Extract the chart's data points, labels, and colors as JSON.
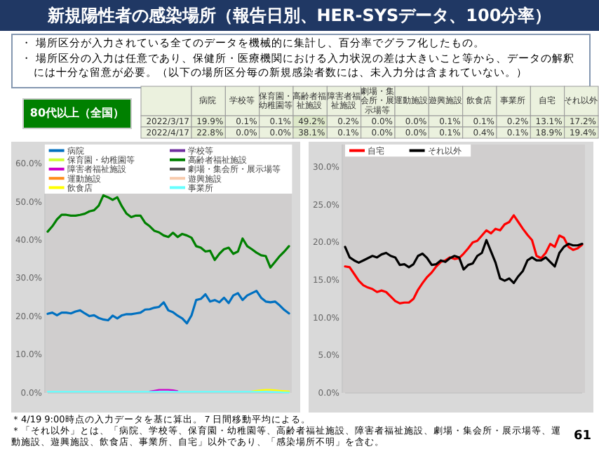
{
  "chart_data": [
    {
      "type": "other",
      "title": "新規陽性者の感染場所（報告日別、HER-SYSデータ、100分率）",
      "annotations": [
        "・ 場所区分が入力されている全てのデータを機械的に集計し、百分率でグラフ化したもの。",
        "・ 場所区分の入力は任意であり、保健所・医療機関における入力状況の差は大きいこと等から、データの解釈には十分な留意が必要。（以下の場所区分毎の新規感染者数には、未入力分は含まれていない。）",
        "80代以上（全国）",
        "＊4/19 9:00時点の入力データを基に算出。７日間移動平均による。",
        "＊「それ以外」とは、「病院、学校等、保育園・幼稚園等、高齢者福祉施設、障害者福祉施設、劇場・集会所・展示場等、運動施設、遊興施設、飲食店、事業所、自宅」以外であり、「感染場所不明」を含む。",
        "61"
      ]
    },
    {
      "type": "heatmap",
      "color": "#ebf1de",
      "categories": [
        "病院",
        "学校等",
        "保育園・幼稚園等",
        "高齢者福祉施設",
        "障害者福祉施設",
        "劇場・集会所・展示場等",
        "運動施設",
        "遊興施設",
        "飲食店",
        "事業所",
        "自宅",
        "それ以外"
      ],
      "y_categories": [
        "2022/3/17",
        "2022/4/17"
      ],
      "cells": [
        [
          19.9,
          0.1,
          0.1,
          49.2,
          0.2,
          0.0,
          0.0,
          0.1,
          0.1,
          0.2,
          13.1,
          17.2
        ],
        [
          22.8,
          0.0,
          0.0,
          38.1,
          0.1,
          0.0,
          0.0,
          0.1,
          0.4,
          0.1,
          18.9,
          19.4
        ]
      ],
      "cell_labels": [
        [
          "19.9%",
          "0.1%",
          "0.1%",
          "49.2%",
          "0.2%",
          "0.0%",
          "0.0%",
          "0.1%",
          "0.1%",
          "0.2%",
          "13.1%",
          "17.2%"
        ],
        [
          "22.8%",
          "0.0%",
          "0.0%",
          "38.1%",
          "0.1%",
          "0.0%",
          "0.0%",
          "0.1%",
          "0.4%",
          "0.1%",
          "18.9%",
          "19.4%"
        ]
      ]
    },
    {
      "type": "line",
      "legend": "top",
      "categories": [
        null,
        null,
        null,
        null,
        null,
        null,
        null,
        null,
        null,
        null,
        null,
        null,
        null,
        null,
        null,
        null,
        null,
        null,
        null,
        null,
        null,
        null,
        null,
        null,
        null,
        null,
        null,
        null,
        null,
        null,
        null,
        null,
        null,
        null,
        null,
        null,
        null,
        null,
        null,
        null,
        null,
        null,
        null,
        null,
        null,
        null,
        null,
        null,
        null,
        null,
        null,
        null,
        null
      ],
      "ylim": [
        0,
        65
      ],
      "yticks": [
        {
          "value": 0,
          "label": "0.0%"
        },
        {
          "value": 10,
          "label": "10.0%"
        },
        {
          "value": 20,
          "label": "20.0%"
        },
        {
          "value": 30,
          "label": "30.0%"
        },
        {
          "value": 40,
          "label": "40.0%"
        },
        {
          "value": 50,
          "label": "50.0%"
        },
        {
          "value": 60,
          "label": "60.0%"
        }
      ],
      "series": [
        {
          "name": "病院",
          "color": "#0070c0",
          "values": [
            20.7,
            21,
            20.3,
            21,
            21,
            20.8,
            21.3,
            21.6,
            20.8,
            20.1,
            20.3,
            19.6,
            19.2,
            19,
            20.2,
            19.5,
            20.3,
            20.6,
            20.6,
            20.8,
            21,
            21.8,
            21.9,
            22.3,
            22.5,
            23.7,
            21.6,
            21.1,
            20.2,
            19.5,
            18.2,
            20.3,
            24.3,
            24.6,
            25.8,
            23.9,
            24.3,
            23.7,
            24.9,
            23.5,
            25.5,
            26.1,
            24.3,
            25.5,
            26.1,
            26.7,
            24.9,
            23.9,
            23.7,
            23.9,
            22.9,
            21.7,
            20.8
          ]
        },
        {
          "name": "学校等",
          "color": "#7030a0",
          "values": [
            null,
            null,
            null,
            null,
            null,
            null,
            null,
            null,
            null,
            null,
            null,
            null,
            null,
            null,
            null,
            null,
            null,
            null,
            null,
            null,
            null,
            null,
            null,
            null,
            null,
            null,
            null,
            null,
            null,
            null,
            null,
            null,
            null,
            null,
            null,
            null,
            null,
            null,
            null,
            null,
            null,
            null,
            null,
            null,
            null,
            null,
            null,
            null,
            null,
            null,
            null,
            null,
            null
          ]
        },
        {
          "name": "保育園・幼稚園等",
          "color": "#ccff33",
          "values": [
            null,
            null,
            null,
            null,
            null,
            null,
            null,
            null,
            null,
            null,
            null,
            null,
            null,
            null,
            null,
            null,
            null,
            null,
            null,
            null,
            null,
            null,
            null,
            null,
            null,
            null,
            null,
            null,
            null,
            null,
            null,
            null,
            null,
            null,
            null,
            null,
            null,
            null,
            null,
            null,
            null,
            null,
            null,
            null,
            null,
            null,
            null,
            null,
            null,
            null,
            null,
            null,
            null
          ]
        },
        {
          "name": "高齢者福祉施設",
          "color": "#008000",
          "values": [
            42.2,
            43.6,
            45.4,
            46.6,
            46.6,
            46.4,
            46.4,
            46.6,
            46.9,
            47.5,
            47.8,
            49,
            51.7,
            51.2,
            50.5,
            51.2,
            48.8,
            46.9,
            46,
            46.4,
            46.4,
            44.5,
            43.6,
            42.4,
            42,
            41.2,
            40.8,
            41.9,
            40.8,
            41.6,
            41.2,
            40.6,
            38.4,
            38,
            37,
            37.2,
            34.8,
            36.4,
            37.6,
            38,
            36.4,
            37,
            40.4,
            38.4,
            37.6,
            36.7,
            36,
            35.8,
            32.8,
            34.3,
            35.8,
            37,
            38.4
          ]
        },
        {
          "name": "障害者福祉施設",
          "color": "#cc00cc",
          "values": [
            null,
            null,
            null,
            null,
            null,
            null,
            null,
            null,
            null,
            null,
            null,
            null,
            null,
            null,
            null,
            null,
            null,
            null,
            null,
            null,
            null,
            null,
            0.4,
            0.6,
            0.8,
            0.8,
            0.8,
            0.7,
            0.5,
            null,
            null,
            null,
            null,
            null,
            null,
            null,
            null,
            null,
            null,
            null,
            null,
            null,
            null,
            null,
            null,
            null,
            null,
            null,
            null,
            null,
            null,
            null,
            null
          ]
        },
        {
          "name": "劇場・集会所・展示場等",
          "color": "#595959",
          "values": [
            null,
            null,
            null,
            null,
            null,
            null,
            null,
            null,
            null,
            null,
            null,
            null,
            null,
            null,
            null,
            null,
            null,
            null,
            null,
            null,
            null,
            null,
            null,
            null,
            null,
            null,
            null,
            null,
            null,
            null,
            null,
            null,
            null,
            null,
            null,
            null,
            null,
            null,
            null,
            null,
            null,
            null,
            null,
            null,
            null,
            null,
            null,
            null,
            null,
            null,
            null,
            null,
            null
          ]
        },
        {
          "name": "運動施設",
          "color": "#ff8c1a",
          "values": [
            null,
            null,
            null,
            null,
            null,
            null,
            null,
            null,
            null,
            null,
            null,
            null,
            null,
            null,
            null,
            null,
            null,
            null,
            null,
            null,
            null,
            null,
            null,
            null,
            null,
            null,
            null,
            null,
            null,
            null,
            null,
            null,
            null,
            null,
            null,
            null,
            null,
            null,
            null,
            null,
            null,
            null,
            null,
            null,
            null,
            null,
            null,
            null,
            null,
            null,
            null,
            null,
            null
          ]
        },
        {
          "name": "遊興施設",
          "color": "#f8cbad",
          "values": [
            null,
            null,
            null,
            null,
            null,
            null,
            null,
            null,
            null,
            null,
            null,
            null,
            null,
            null,
            null,
            null,
            null,
            null,
            null,
            null,
            null,
            null,
            null,
            null,
            null,
            null,
            null,
            null,
            null,
            null,
            null,
            null,
            null,
            null,
            null,
            null,
            null,
            null,
            null,
            null,
            null,
            null,
            null,
            null,
            null,
            null,
            null,
            null,
            null,
            null,
            null,
            null,
            null
          ]
        },
        {
          "name": "飲食店",
          "color": "#ffff00",
          "values": [
            null,
            null,
            null,
            null,
            null,
            null,
            null,
            null,
            null,
            null,
            null,
            null,
            null,
            null,
            null,
            null,
            null,
            null,
            null,
            null,
            null,
            null,
            null,
            null,
            null,
            null,
            null,
            null,
            null,
            null,
            null,
            null,
            null,
            null,
            null,
            null,
            null,
            null,
            null,
            null,
            null,
            null,
            null,
            null,
            0.4,
            0.6,
            0.7,
            0.8,
            0.8,
            0.7,
            0.6,
            0.5,
            0.4
          ]
        },
        {
          "name": "事業所",
          "color": "#66ffff",
          "values": [
            0.3,
            0.3,
            0.3,
            0.3,
            0.3,
            0.3,
            0.3,
            0.3,
            0.3,
            0.3,
            0.3,
            0.3,
            0.3,
            0.3,
            0.3,
            0.3,
            0.3,
            0.3,
            0.3,
            0.3,
            0.3,
            0.3,
            0.3,
            0.3,
            0.3,
            0.3,
            0.3,
            0.3,
            0.3,
            0.3,
            0.3,
            0.3,
            0.3,
            0.3,
            0.3,
            0.3,
            0.3,
            0.3,
            0.3,
            0.3,
            0.3,
            0.3,
            0.3,
            0.3,
            0.3,
            0.3,
            0.3,
            0.3,
            0.2,
            0.2,
            0.2,
            0.1,
            0.1
          ]
        }
      ]
    },
    {
      "type": "line",
      "legend": "top left",
      "categories": [
        null,
        null,
        null,
        null,
        null,
        null,
        null,
        null,
        null,
        null,
        null,
        null,
        null,
        null,
        null,
        null,
        null,
        null,
        null,
        null,
        null,
        null,
        null,
        null,
        null,
        null,
        null,
        null,
        null,
        null,
        null,
        null,
        null,
        null,
        null,
        null,
        null,
        null,
        null,
        null,
        null,
        null,
        null,
        null,
        null,
        null,
        null,
        null,
        null,
        null,
        null,
        null,
        null
      ],
      "ylim": [
        0,
        33
      ],
      "yticks": [
        {
          "value": 0,
          "label": "0.0%"
        },
        {
          "value": 5,
          "label": "5.0%"
        },
        {
          "value": 10,
          "label": "10.0%"
        },
        {
          "value": 15,
          "label": "15.0%"
        },
        {
          "value": 20,
          "label": "20.0%"
        },
        {
          "value": 25,
          "label": "25.0%"
        },
        {
          "value": 30,
          "label": "30.0%"
        }
      ],
      "series": [
        {
          "name": "自宅",
          "color": "#ff0000",
          "values": [
            16.8,
            16.7,
            15.8,
            14.9,
            14.3,
            14,
            13.8,
            13.4,
            13.6,
            13.4,
            12.8,
            12.2,
            11.9,
            12,
            12,
            12.5,
            13.7,
            14.6,
            15.4,
            16,
            16.8,
            17.4,
            17.6,
            18,
            17.8,
            17.9,
            18.5,
            19.2,
            20,
            20.2,
            20.9,
            21.6,
            21.2,
            21.8,
            21.6,
            22.4,
            22.7,
            23.6,
            22.7,
            21.8,
            21,
            20.3,
            18.2,
            17.9,
            18.6,
            19.8,
            19.4,
            20.9,
            20.6,
            19.4,
            19,
            19.2,
            19.7
          ]
        },
        {
          "name": "それ以外",
          "color": "#000000",
          "values": [
            19.4,
            18,
            17.6,
            17.3,
            17.6,
            17.9,
            18.2,
            18,
            18.4,
            18.6,
            18.2,
            18,
            17,
            17.1,
            16.7,
            17.1,
            18.2,
            18.5,
            17.9,
            17,
            17.1,
            17.6,
            17.4,
            17.9,
            18.2,
            18,
            16.4,
            17,
            17.2,
            18.2,
            18.6,
            20.3,
            18.8,
            17.3,
            15.2,
            14.9,
            15.2,
            14.6,
            15.5,
            16.2,
            17.6,
            18,
            17.6,
            17.6,
            18,
            17.4,
            16.8,
            18.6,
            19.4,
            19.8,
            19.6,
            19.6,
            19.8
          ]
        }
      ]
    }
  ]
}
